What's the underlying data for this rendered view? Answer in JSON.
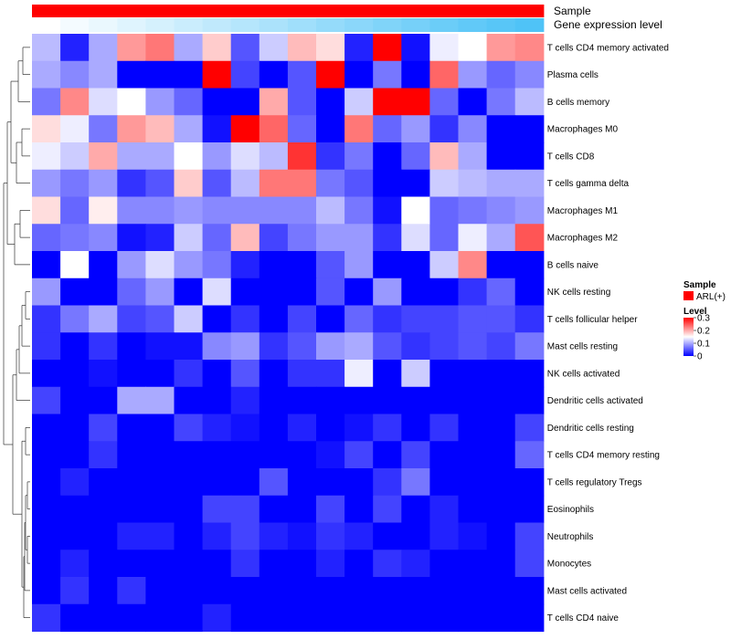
{
  "chart_data": {
    "type": "heatmap",
    "title": "",
    "annotation_tracks": [
      {
        "name": "Sample",
        "key": "sample_label"
      },
      {
        "name": "Gene expression level",
        "key": "gene_label"
      }
    ],
    "rows": [
      "T cells CD4 memory activated",
      "Plasma cells",
      "B cells memory",
      "Macrophages M0",
      "T cells CD8",
      "T cells gamma delta",
      "Macrophages M1",
      "Macrophages M2",
      "B cells naive",
      "NK cells resting",
      "T cells follicular helper",
      "Mast cells resting",
      "NK cells activated",
      "Dendritic cells activated",
      "Dendritic cells resting",
      "T cells CD4 memory resting",
      "T cells regulatory  Tregs",
      "Eosinophils",
      "Neutrophils",
      "Monocytes",
      "Mast cells activated",
      "T cells CD4 naive"
    ],
    "n_columns": 18,
    "values": [
      [
        0.11,
        0.02,
        0.1,
        0.21,
        0.23,
        0.1,
        0.18,
        0.05,
        0.12,
        0.19,
        0.17,
        0.02,
        0.31,
        0.01,
        0.14,
        0.15,
        0.21,
        0.22
      ],
      [
        0.1,
        0.08,
        0.1,
        0.0,
        0.0,
        0.0,
        0.33,
        0.04,
        0.0,
        0.05,
        0.34,
        0.0,
        0.07,
        0.0,
        0.24,
        0.09,
        0.06,
        0.08
      ],
      [
        0.07,
        0.22,
        0.13,
        0.15,
        0.09,
        0.06,
        0.0,
        0.0,
        0.2,
        0.05,
        0.0,
        0.12,
        0.34,
        0.33,
        0.06,
        0.0,
        0.07,
        0.11
      ],
      [
        0.17,
        0.14,
        0.07,
        0.21,
        0.19,
        0.1,
        0.01,
        0.34,
        0.24,
        0.06,
        0.0,
        0.23,
        0.06,
        0.09,
        0.03,
        0.08,
        0.0,
        0.0
      ],
      [
        0.14,
        0.12,
        0.2,
        0.1,
        0.1,
        0.15,
        0.09,
        0.13,
        0.11,
        0.27,
        0.03,
        0.07,
        0.0,
        0.06,
        0.19,
        0.1,
        0.0,
        0.0
      ],
      [
        0.09,
        0.07,
        0.09,
        0.03,
        0.05,
        0.18,
        0.05,
        0.11,
        0.23,
        0.23,
        0.07,
        0.05,
        0.0,
        0.0,
        0.12,
        0.11,
        0.1,
        0.1
      ],
      [
        0.17,
        0.06,
        0.16,
        0.08,
        0.08,
        0.09,
        0.08,
        0.08,
        0.08,
        0.08,
        0.11,
        0.07,
        0.01,
        0.15,
        0.06,
        0.07,
        0.08,
        0.09
      ],
      [
        0.06,
        0.07,
        0.08,
        0.01,
        0.02,
        0.12,
        0.06,
        0.19,
        0.04,
        0.07,
        0.09,
        0.09,
        0.03,
        0.13,
        0.06,
        0.14,
        0.1,
        0.25
      ],
      [
        0.0,
        0.15,
        0.0,
        0.09,
        0.13,
        0.09,
        0.07,
        0.02,
        0.0,
        0.0,
        0.05,
        0.09,
        0.0,
        0.0,
        0.12,
        0.22,
        0.0,
        0.0
      ],
      [
        0.09,
        0.0,
        0.0,
        0.06,
        0.09,
        0.0,
        0.13,
        0.0,
        0.0,
        0.0,
        0.05,
        0.0,
        0.09,
        0.0,
        0.0,
        0.03,
        0.06,
        0.0
      ],
      [
        0.03,
        0.07,
        0.1,
        0.04,
        0.05,
        0.12,
        0.0,
        0.03,
        0.0,
        0.04,
        0.0,
        0.06,
        0.03,
        0.04,
        0.04,
        0.05,
        0.05,
        0.03
      ],
      [
        0.03,
        0.0,
        0.03,
        0.0,
        0.01,
        0.01,
        0.08,
        0.09,
        0.03,
        0.05,
        0.09,
        0.1,
        0.05,
        0.03,
        0.04,
        0.05,
        0.04,
        0.07
      ],
      [
        0.0,
        0.0,
        0.01,
        0.0,
        0.0,
        0.03,
        0.0,
        0.05,
        0.0,
        0.03,
        0.03,
        0.14,
        0.0,
        0.12,
        0.0,
        0.0,
        0.0,
        0.0
      ],
      [
        0.04,
        0.0,
        0.0,
        0.1,
        0.1,
        0.0,
        0.0,
        0.02,
        0.0,
        0.0,
        0.0,
        0.0,
        0.0,
        0.0,
        0.0,
        0.0,
        0.0,
        0.0
      ],
      [
        0.0,
        0.0,
        0.04,
        0.0,
        0.0,
        0.04,
        0.02,
        0.01,
        0.0,
        0.02,
        0.0,
        0.01,
        0.03,
        0.0,
        0.03,
        0.0,
        0.0,
        0.04
      ],
      [
        0.0,
        0.0,
        0.03,
        0.0,
        0.0,
        0.0,
        0.0,
        0.0,
        0.0,
        0.0,
        0.01,
        0.04,
        0.0,
        0.04,
        0.0,
        0.0,
        0.0,
        0.06
      ],
      [
        0.0,
        0.02,
        0.0,
        0.0,
        0.0,
        0.0,
        0.0,
        0.0,
        0.05,
        0.0,
        0.0,
        0.0,
        0.03,
        0.07,
        0.0,
        0.0,
        0.0,
        0.0
      ],
      [
        0.0,
        0.0,
        0.0,
        0.0,
        0.0,
        0.0,
        0.04,
        0.04,
        0.0,
        0.0,
        0.04,
        0.0,
        0.04,
        0.0,
        0.02,
        0.0,
        0.0,
        0.0
      ],
      [
        0.0,
        0.0,
        0.0,
        0.02,
        0.02,
        0.0,
        0.02,
        0.04,
        0.02,
        0.01,
        0.03,
        0.02,
        0.0,
        0.0,
        0.02,
        0.01,
        0.0,
        0.04
      ],
      [
        0.0,
        0.02,
        0.0,
        0.0,
        0.0,
        0.0,
        0.0,
        0.03,
        0.0,
        0.0,
        0.02,
        0.0,
        0.03,
        0.02,
        0.0,
        0.0,
        0.0,
        0.04
      ],
      [
        0.0,
        0.03,
        0.0,
        0.03,
        0.0,
        0.0,
        0.0,
        0.0,
        0.0,
        0.0,
        0.0,
        0.0,
        0.0,
        0.0,
        0.0,
        0.0,
        0.0,
        0.0
      ],
      [
        0.03,
        0.0,
        0.0,
        0.0,
        0.0,
        0.0,
        0.02,
        0.0,
        0.0,
        0.0,
        0.0,
        0.0,
        0.0,
        0.0,
        0.0,
        0.0,
        0.0,
        0.0
      ]
    ],
    "sample_label": "Sample",
    "gene_label": "Gene expression level",
    "gene_level_values": [
      0.0,
      0.06,
      0.12,
      0.18,
      0.24,
      0.3,
      0.36,
      0.42,
      0.48,
      0.54,
      0.6,
      0.66,
      0.72,
      0.78,
      0.84,
      0.9,
      0.95,
      1.0
    ],
    "sample_group": "ARL(+)",
    "legend": {
      "sample_title": "Sample",
      "sample_entry": "ARL(+)",
      "level_title": "Level",
      "level_ticks": [
        "0.3",
        "0.2",
        "0.1",
        "0"
      ],
      "level_tick_values": [
        0.3,
        0.2,
        0.1,
        0
      ],
      "range": [
        0,
        0.3
      ]
    },
    "colors": {
      "low": "#0000ff",
      "mid": "#ffffff",
      "high": "#ff0000",
      "sample": "#ff0000",
      "gene_low": "#ffffff",
      "gene_high": "#4fc3f7"
    },
    "row_dendrogram": "shown"
  }
}
